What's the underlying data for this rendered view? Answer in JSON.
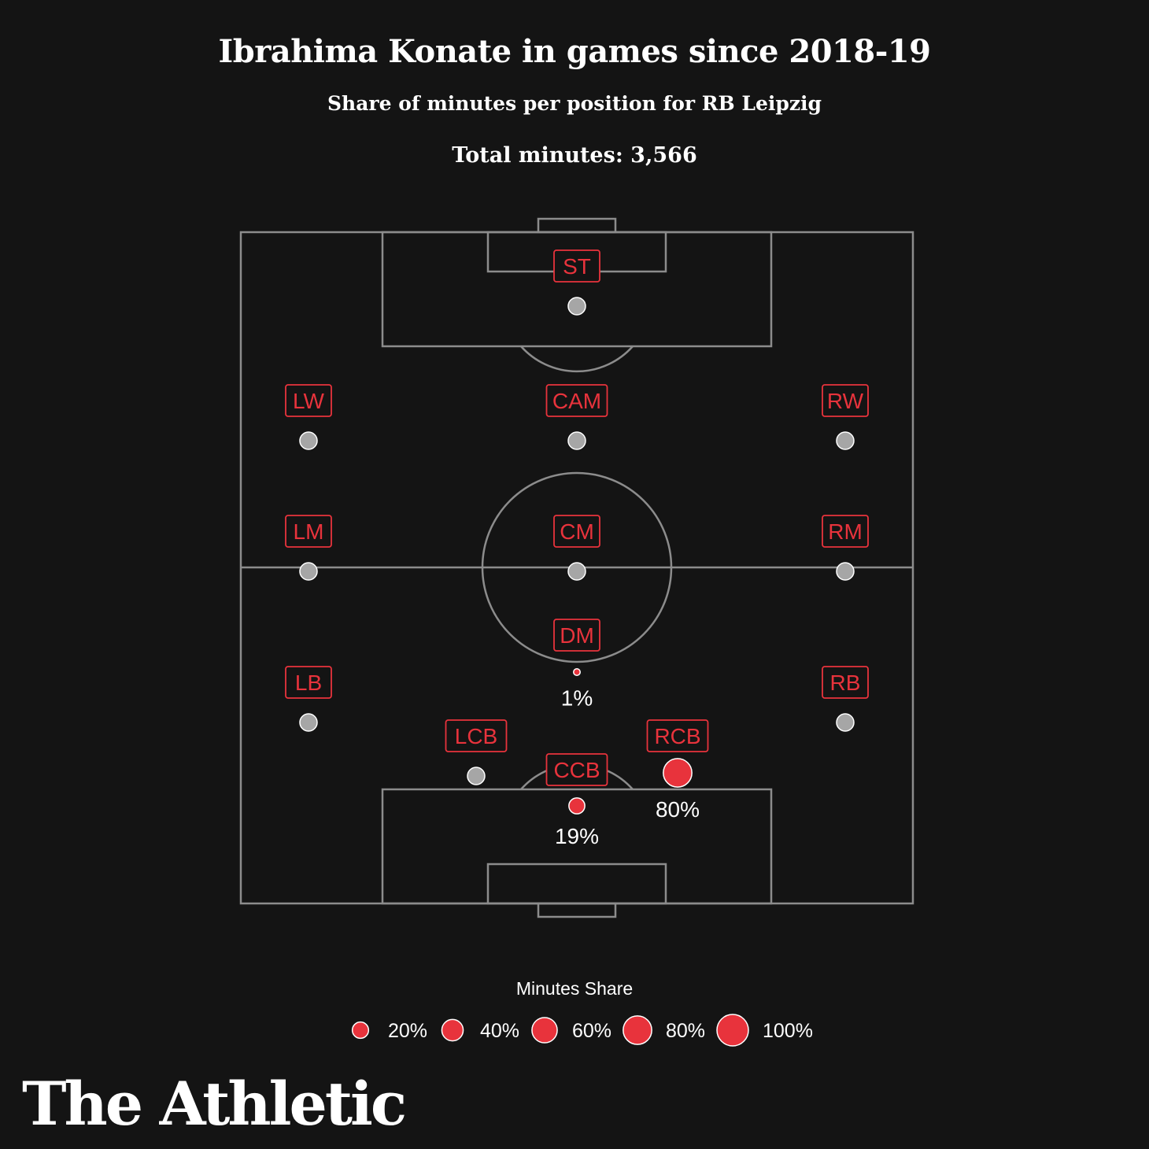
{
  "header": {
    "title": "Ibrahima Konate in games since 2018-19",
    "subtitle": "Share of minutes per position for RB Leipzig",
    "total_minutes": "Total minutes: 3,566"
  },
  "colors": {
    "background": "#141414",
    "pitch_lines": "#8c8c8c",
    "accent_red": "#e8333c",
    "empty_marker": "#a6a6a6",
    "text": "#ffffff"
  },
  "chart_data": {
    "type": "scatter",
    "title": "Ibrahima Konate in games since 2018-19",
    "subtitle": "Share of minutes per position for RB Leipzig",
    "total_minutes": 3566,
    "positions": [
      {
        "label": "ST",
        "share": 0
      },
      {
        "label": "LW",
        "share": 0
      },
      {
        "label": "CAM",
        "share": 0
      },
      {
        "label": "RW",
        "share": 0
      },
      {
        "label": "LM",
        "share": 0
      },
      {
        "label": "CM",
        "share": 0
      },
      {
        "label": "RM",
        "share": 0
      },
      {
        "label": "DM",
        "share": 1,
        "value_label": "1%"
      },
      {
        "label": "LB",
        "share": 0
      },
      {
        "label": "RB",
        "share": 0
      },
      {
        "label": "LCB",
        "share": 0
      },
      {
        "label": "RCB",
        "share": 80,
        "value_label": "80%"
      },
      {
        "label": "CCB",
        "share": 19,
        "value_label": "19%"
      }
    ],
    "legend": {
      "title": "Minutes Share",
      "items": [
        {
          "label": "20%",
          "share": 20
        },
        {
          "label": "40%",
          "share": 40
        },
        {
          "label": "60%",
          "share": 60
        },
        {
          "label": "80%",
          "share": 80
        },
        {
          "label": "100%",
          "share": 100
        }
      ]
    }
  },
  "brand": "The Athletic"
}
